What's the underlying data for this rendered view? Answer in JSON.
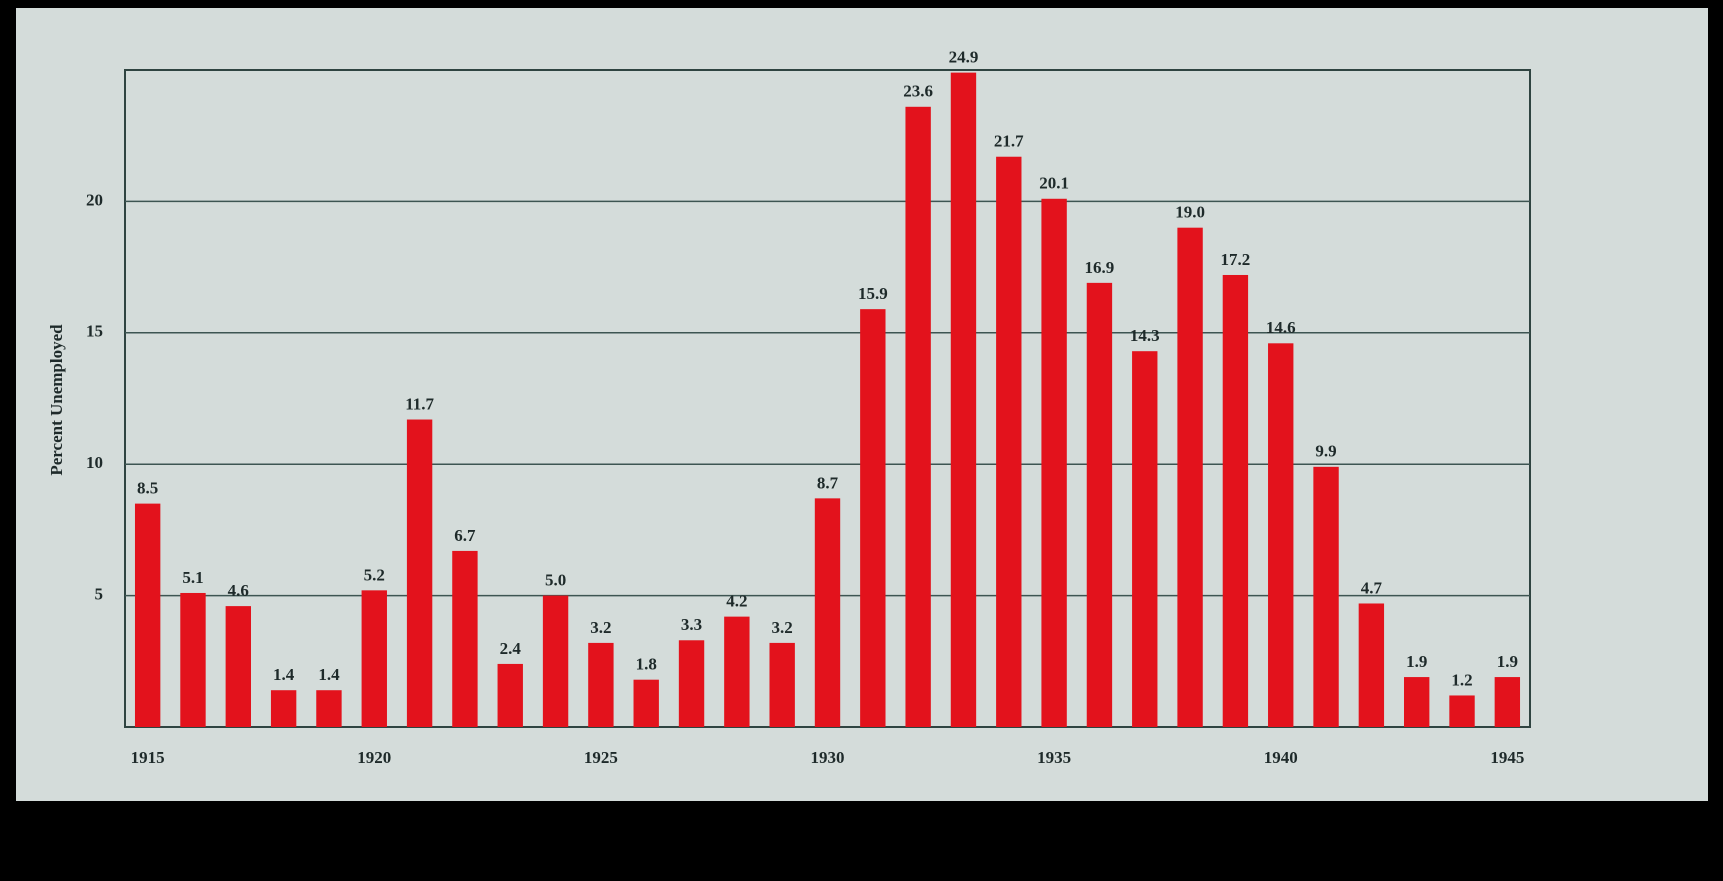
{
  "chart_data": {
    "type": "bar",
    "y_label": "Percent Unemployed",
    "categories": [
      "1915",
      null,
      null,
      null,
      null,
      "1920",
      null,
      null,
      null,
      null,
      "1925",
      null,
      null,
      null,
      null,
      "1930",
      null,
      null,
      null,
      null,
      "1935",
      null,
      null,
      null,
      null,
      "1940",
      null,
      null,
      null,
      null,
      "1945"
    ],
    "values": [
      8.5,
      5.1,
      4.6,
      1.4,
      1.4,
      5.2,
      11.7,
      6.7,
      2.4,
      5.0,
      3.2,
      1.8,
      3.3,
      4.2,
      3.2,
      8.7,
      15.9,
      23.6,
      24.9,
      21.7,
      20.1,
      16.9,
      14.3,
      19.0,
      17.2,
      14.6,
      9.9,
      4.7,
      1.9,
      1.2,
      1.9
    ],
    "value_labels": [
      "8.5",
      "5.1",
      "4.6",
      "1.4",
      "1.4",
      "5.2",
      "11.7",
      "6.7",
      "2.4",
      "5.0",
      "3.2",
      "1.8",
      "3.3",
      "4.2",
      "3.2",
      "8.7",
      "15.9",
      "23.6",
      "24.9",
      "21.7",
      "20.1",
      "16.9",
      "14.3",
      "19.0",
      "17.2",
      "14.6",
      "9.9",
      "4.7",
      "1.9",
      "1.2",
      "1.9"
    ],
    "color": "#e3121c",
    "ylim": [
      0,
      25
    ],
    "yticks": [
      5,
      10,
      15,
      20
    ],
    "grid": true
  }
}
